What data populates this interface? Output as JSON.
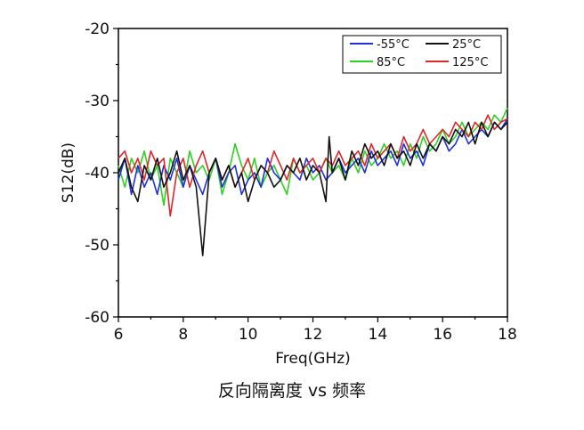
{
  "caption": "反向隔离度 vs 频率",
  "chart_data": {
    "type": "line",
    "title": "",
    "xlabel": "Freq(GHz)",
    "ylabel": "S12(dB)",
    "xlim": [
      6,
      18
    ],
    "ylim": [
      -60,
      -20
    ],
    "xticks": [
      6,
      8,
      10,
      12,
      14,
      16,
      18
    ],
    "yticks": [
      -20,
      -30,
      -40,
      -50,
      -60
    ],
    "xtick_labels": [
      "6",
      "8",
      "10",
      "12",
      "14",
      "16",
      "18"
    ],
    "ytick_labels": [
      "-20",
      "-30",
      "-40",
      "-50",
      "-60"
    ],
    "grid": false,
    "legend_position": "top-right",
    "series": [
      {
        "name": "-55°C",
        "color": "#1f2fe0",
        "x": [
          6.0,
          6.2,
          6.4,
          6.6,
          6.8,
          7.0,
          7.2,
          7.4,
          7.6,
          7.8,
          8.0,
          8.2,
          8.4,
          8.6,
          8.8,
          9.0,
          9.2,
          9.4,
          9.6,
          9.8,
          10.0,
          10.2,
          10.4,
          10.6,
          10.8,
          11.0,
          11.2,
          11.4,
          11.6,
          11.8,
          12.0,
          12.2,
          12.4,
          12.6,
          12.8,
          13.0,
          13.2,
          13.4,
          13.6,
          13.8,
          14.0,
          14.2,
          14.4,
          14.6,
          14.8,
          15.0,
          15.2,
          15.4,
          15.6,
          15.8,
          16.0,
          16.2,
          16.4,
          16.6,
          16.8,
          17.0,
          17.2,
          17.4,
          17.6,
          17.8,
          18.0
        ],
        "y": [
          -41,
          -38,
          -43,
          -39,
          -42,
          -40,
          -43,
          -39,
          -41,
          -38,
          -42,
          -39,
          -41,
          -43,
          -40,
          -38,
          -42,
          -40,
          -39,
          -43,
          -41,
          -40,
          -42,
          -38,
          -40,
          -41,
          -39,
          -40,
          -41,
          -38,
          -40,
          -39,
          -41,
          -40,
          -38,
          -40,
          -39,
          -38,
          -40,
          -37,
          -39,
          -38,
          -37,
          -39,
          -36,
          -38,
          -37,
          -39,
          -36,
          -37,
          -35,
          -37,
          -36,
          -34,
          -36,
          -35,
          -34,
          -35,
          -33,
          -34,
          -32.5
        ]
      },
      {
        "name": "25°C",
        "color": "#111111",
        "x": [
          6.0,
          6.2,
          6.4,
          6.6,
          6.8,
          7.0,
          7.2,
          7.4,
          7.6,
          7.8,
          8.0,
          8.2,
          8.4,
          8.6,
          8.8,
          9.0,
          9.2,
          9.4,
          9.6,
          9.8,
          10.0,
          10.2,
          10.4,
          10.6,
          10.8,
          11.0,
          11.2,
          11.4,
          11.6,
          11.8,
          12.0,
          12.2,
          12.4,
          12.5,
          12.6,
          12.8,
          13.0,
          13.2,
          13.4,
          13.6,
          13.8,
          14.0,
          14.2,
          14.4,
          14.6,
          14.8,
          15.0,
          15.2,
          15.4,
          15.6,
          15.8,
          16.0,
          16.2,
          16.4,
          16.6,
          16.8,
          17.0,
          17.2,
          17.4,
          17.6,
          17.8,
          18.0
        ],
        "y": [
          -40,
          -38,
          -42,
          -44,
          -39,
          -41,
          -38,
          -42,
          -40,
          -37,
          -41,
          -39,
          -42,
          -51.5,
          -40,
          -38,
          -41,
          -39,
          -42,
          -40,
          -44,
          -41,
          -39,
          -40,
          -42,
          -41,
          -39,
          -40,
          -38,
          -41,
          -39,
          -40,
          -44,
          -35,
          -40,
          -38,
          -41,
          -37,
          -39,
          -36,
          -38,
          -37,
          -39,
          -36,
          -38,
          -37,
          -39,
          -36,
          -38,
          -36,
          -37,
          -35,
          -36,
          -34,
          -35,
          -33,
          -36,
          -33,
          -35,
          -33,
          -34,
          -33
        ]
      },
      {
        "name": "85°C",
        "color": "#2ed11f",
        "x": [
          6.0,
          6.2,
          6.4,
          6.6,
          6.8,
          7.0,
          7.2,
          7.4,
          7.6,
          7.8,
          8.0,
          8.2,
          8.4,
          8.6,
          8.8,
          9.0,
          9.2,
          9.4,
          9.6,
          9.8,
          10.0,
          10.2,
          10.4,
          10.6,
          10.8,
          11.0,
          11.2,
          11.4,
          11.6,
          11.8,
          12.0,
          12.2,
          12.4,
          12.6,
          12.8,
          13.0,
          13.2,
          13.4,
          13.6,
          13.8,
          14.0,
          14.2,
          14.4,
          14.6,
          14.8,
          15.0,
          15.2,
          15.4,
          15.6,
          15.8,
          16.0,
          16.2,
          16.4,
          16.6,
          16.8,
          17.0,
          17.2,
          17.4,
          17.6,
          17.8,
          18.0
        ],
        "y": [
          -39,
          -42,
          -38,
          -40,
          -37,
          -41,
          -39,
          -44.5,
          -38,
          -40,
          -42,
          -37,
          -40,
          -39,
          -41,
          -38,
          -43,
          -40,
          -36,
          -39,
          -41,
          -38,
          -42,
          -40,
          -39,
          -41,
          -43,
          -38,
          -40,
          -39,
          -41,
          -40,
          -38,
          -40,
          -39,
          -41,
          -38,
          -40,
          -37,
          -39,
          -38,
          -36,
          -38,
          -37,
          -39,
          -36,
          -38,
          -35,
          -37,
          -36,
          -34,
          -36,
          -35,
          -33,
          -35,
          -34,
          -33,
          -34,
          -32,
          -33,
          -31
        ]
      },
      {
        "name": "125°C",
        "color": "#e0262b",
        "x": [
          6.0,
          6.2,
          6.4,
          6.6,
          6.8,
          7.0,
          7.2,
          7.4,
          7.6,
          7.8,
          8.0,
          8.2,
          8.4,
          8.6,
          8.8,
          9.0,
          9.2,
          9.4,
          9.6,
          9.8,
          10.0,
          10.2,
          10.4,
          10.6,
          10.8,
          11.0,
          11.2,
          11.4,
          11.6,
          11.8,
          12.0,
          12.2,
          12.4,
          12.6,
          12.8,
          13.0,
          13.2,
          13.4,
          13.6,
          13.8,
          14.0,
          14.2,
          14.4,
          14.6,
          14.8,
          15.0,
          15.2,
          15.4,
          15.6,
          15.8,
          16.0,
          16.2,
          16.4,
          16.6,
          16.8,
          17.0,
          17.2,
          17.4,
          17.6,
          17.8,
          18.0
        ],
        "y": [
          -38,
          -37,
          -40,
          -38,
          -41,
          -37,
          -39,
          -38,
          -46,
          -40,
          -38,
          -42,
          -39,
          -37,
          -40,
          -38,
          -41,
          -39,
          -42,
          -40,
          -38,
          -41,
          -39,
          -40,
          -37,
          -39,
          -41,
          -38,
          -40,
          -39,
          -38,
          -40,
          -38,
          -39,
          -37,
          -39,
          -38,
          -37,
          -39,
          -36,
          -38,
          -37,
          -36,
          -38,
          -35,
          -37,
          -36,
          -34,
          -36,
          -35,
          -34,
          -35,
          -33,
          -34,
          -35,
          -33,
          -34,
          -32,
          -34,
          -33,
          -32.5
        ]
      }
    ]
  }
}
